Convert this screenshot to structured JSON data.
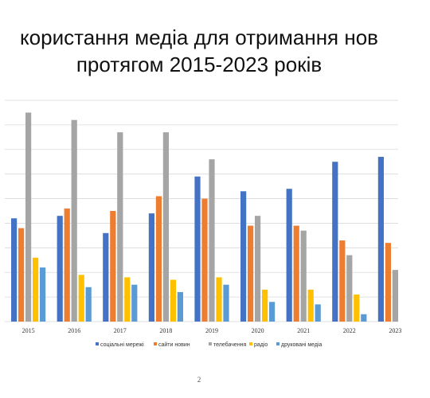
{
  "title_line1": "користання медіа для отримання нов",
  "title_line2": "протягом 2015-2023 років",
  "page_number": "2",
  "colors": [
    "#4472C4",
    "#ED7D31",
    "#A5A5A5",
    "#FFC000",
    "#5B9BD5"
  ],
  "chart_data": {
    "type": "bar",
    "title": "",
    "xlabel": "",
    "ylabel": "",
    "categories": [
      "2015",
      "2016",
      "2017",
      "2018",
      "2019",
      "2020",
      "2021",
      "2022",
      "2023"
    ],
    "ylim": [
      0,
      90
    ],
    "grid": true,
    "legend": "bottom",
    "series": [
      {
        "name": "соціальні мережі",
        "values": [
          42,
          43,
          36,
          44,
          59,
          53,
          54,
          65,
          67
        ]
      },
      {
        "name": "сайти новин",
        "values": [
          38,
          46,
          45,
          51,
          50,
          39,
          39,
          33,
          32
        ]
      },
      {
        "name": "телебачення",
        "values": [
          85,
          82,
          77,
          77,
          66,
          43,
          37,
          27,
          21
        ]
      },
      {
        "name": "радіо",
        "values": [
          26,
          19,
          18,
          17,
          18,
          13,
          13,
          11,
          null
        ]
      },
      {
        "name": "друковані медіа",
        "values": [
          22,
          14,
          15,
          12,
          15,
          8,
          7,
          3,
          null
        ]
      }
    ]
  }
}
